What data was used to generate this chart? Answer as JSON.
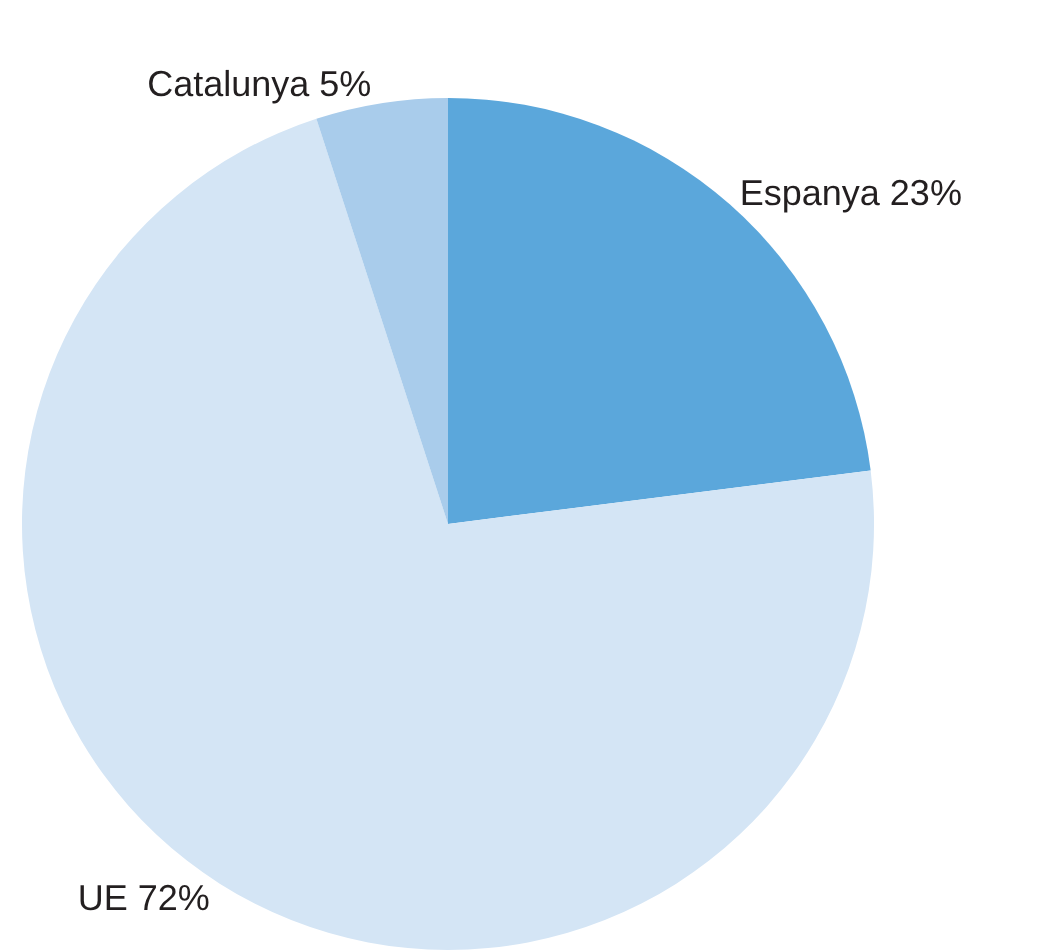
{
  "chart_data": {
    "type": "pie",
    "categories": [
      "Espanya",
      "UE",
      "Catalunya"
    ],
    "values": [
      23,
      72,
      5
    ],
    "colors": [
      "#5ba7db",
      "#d4e5f5",
      "#a9cceb"
    ],
    "value_labels": [
      "23%",
      "72%",
      "5%"
    ],
    "legend": false
  }
}
